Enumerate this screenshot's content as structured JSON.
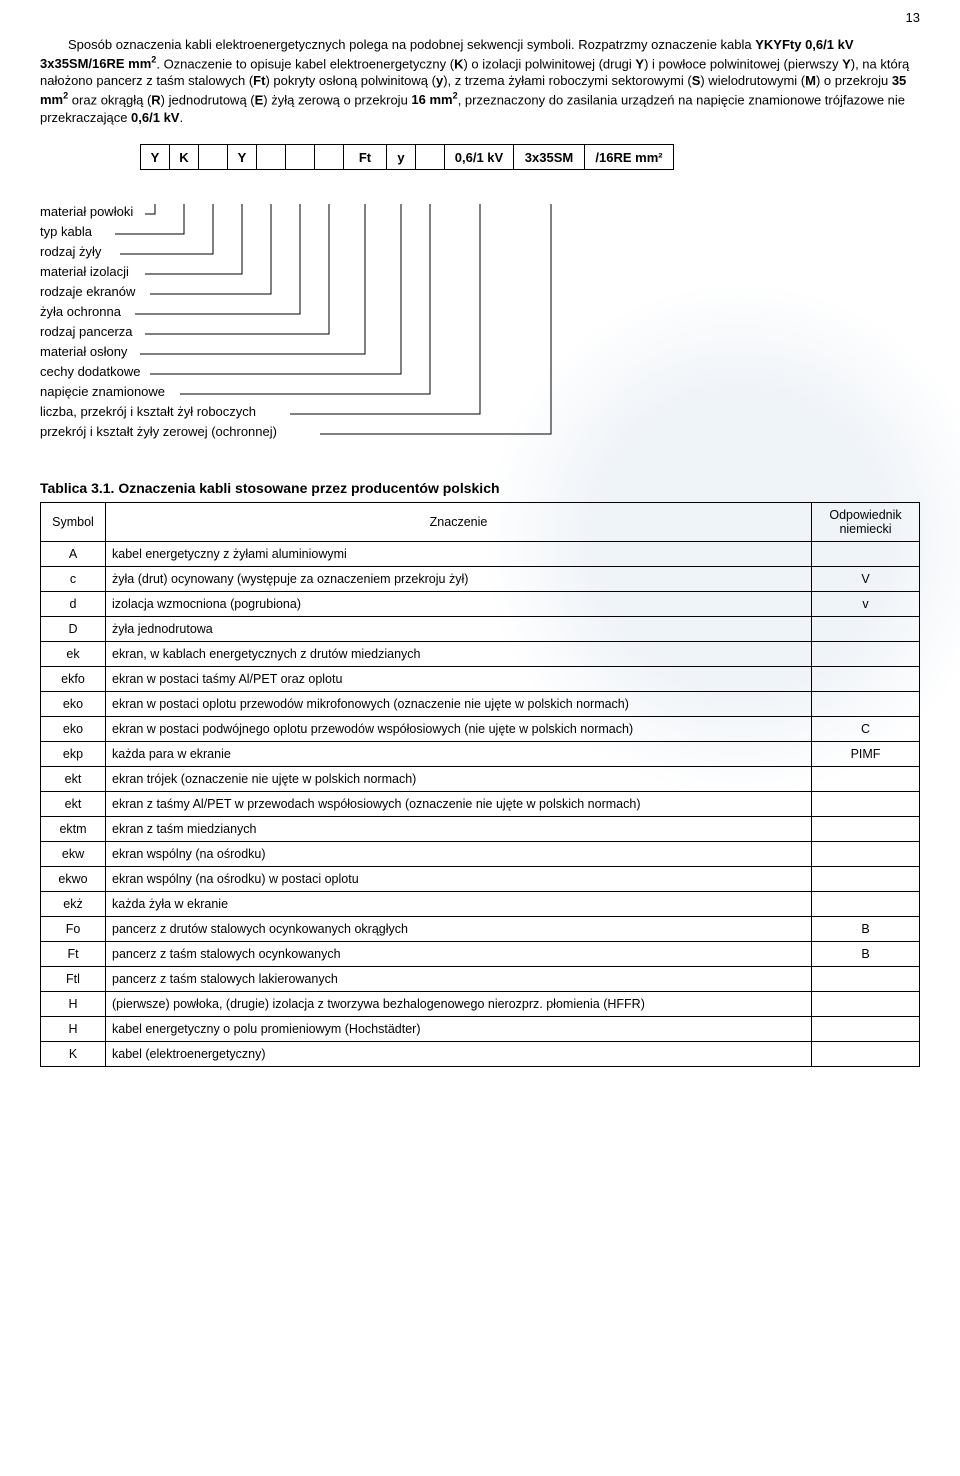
{
  "page_number": "13",
  "intro": {
    "p1_a": "Sposób oznaczenia kabli elektroenergetycznych polega na podobnej sekwencji symboli. Rozpatrzmy oznaczenie kabla ",
    "p1_b": "YKYFty 0,6/1 kV 3x35SM/16RE mm",
    "p1_c": ". Oznaczenie to opisuje kabel elektroenergetyczny (",
    "p1_d": ") o izolacji polwinitowej (drugi ",
    "p1_e": ") i powłoce polwinitowej (pierwszy ",
    "p1_f": "), na którą nałożono pancerz z taśm stalowych (",
    "p1_g": ") pokryty osłoną polwinitową (",
    "p1_h": "), z trzema żyłami roboczymi sektorowymi (",
    "p1_i": ") wielodrutowymi (",
    "p1_j": ") o przekroju ",
    "p1_k": " oraz okrągłą (",
    "p1_l": ") jednodrutową (",
    "p1_m": ") żyłą zerową o przekroju ",
    "p1_n": ", przeznaczony do zasilania urządzeń na napięcie znamionowe trójfazowe nie przekraczające ",
    "p1_o": ".",
    "k_K": "K",
    "k_Y": "Y",
    "k_Ft": "Ft",
    "k_y": "y",
    "k_S": "S",
    "k_M": "M",
    "k_R": "R",
    "k_E": "E",
    "k_35": "35 mm",
    "k_16": "16 mm",
    "k_061": "0,6/1 kV",
    "sup2": "2"
  },
  "diagram": {
    "cells": [
      "Y",
      "K",
      "",
      "Y",
      "",
      "",
      "",
      "Ft",
      "y",
      "",
      "0,6/1 kV",
      "3x35SM",
      "/16RE mm²"
    ],
    "labels": [
      "materiał powłoki",
      "typ kabla",
      "rodzaj żyły",
      "materiał izolacji",
      "rodzaje ekranów",
      "żyła ochronna",
      "rodzaj pancerza",
      "materiał osłony",
      "cechy dodatkowe",
      "napięcie znamionowe",
      "liczba, przekrój i kształt żył roboczych",
      "przekrój i kształt żyły zerowej (ochronnej)"
    ]
  },
  "table": {
    "title": "Tablica 3.1. Oznaczenia kabli stosowane przez producentów polskich",
    "head_symbol": "Symbol",
    "head_meaning": "Znaczenie",
    "head_equiv": "Odpowiednik niemiecki",
    "rows": [
      {
        "sym": "A",
        "mean": "kabel energetyczny z żyłami aluminiowymi",
        "eq": ""
      },
      {
        "sym": "c",
        "mean": "żyła (drut) ocynowany (występuje za oznaczeniem przekroju żył)",
        "eq": "V"
      },
      {
        "sym": "d",
        "mean": "izolacja wzmocniona (pogrubiona)",
        "eq": "v"
      },
      {
        "sym": "D",
        "mean": "żyła jednodrutowa",
        "eq": ""
      },
      {
        "sym": "ek",
        "mean": "ekran, w kablach energetycznych z drutów miedzianych",
        "eq": ""
      },
      {
        "sym": "ekfo",
        "mean": "ekran w postaci taśmy Al/PET oraz oplotu",
        "eq": ""
      },
      {
        "sym": "eko",
        "mean": "ekran w postaci oplotu przewodów mikrofonowych (oznaczenie nie ujęte w polskich normach)",
        "eq": ""
      },
      {
        "sym": "eko",
        "mean": "ekran w postaci podwójnego oplotu przewodów współosiowych (nie ujęte w polskich normach)",
        "eq": "C"
      },
      {
        "sym": "ekp",
        "mean": "każda para w ekranie",
        "eq": "PIMF"
      },
      {
        "sym": "ekt",
        "mean": "ekran trójek (oznaczenie nie ujęte w polskich normach)",
        "eq": ""
      },
      {
        "sym": "ekt",
        "mean": "ekran z taśmy Al/PET w przewodach współosiowych (oznaczenie nie ujęte w polskich normach)",
        "eq": ""
      },
      {
        "sym": "ektm",
        "mean": "ekran z taśm miedzianych",
        "eq": ""
      },
      {
        "sym": "ekw",
        "mean": "ekran wspólny (na ośrodku)",
        "eq": ""
      },
      {
        "sym": "ekwo",
        "mean": "ekran wspólny (na ośrodku) w postaci oplotu",
        "eq": ""
      },
      {
        "sym": "ekż",
        "mean": "każda żyła w ekranie",
        "eq": ""
      },
      {
        "sym": "Fo",
        "mean": "pancerz z drutów stalowych ocynkowanych okrągłych",
        "eq": "B"
      },
      {
        "sym": "Ft",
        "mean": "pancerz z taśm stalowych ocynkowanych",
        "eq": "B"
      },
      {
        "sym": "Ftl",
        "mean": "pancerz z taśm stalowych lakierowanych",
        "eq": ""
      },
      {
        "sym": "H",
        "mean": "(pierwsze) powłoka, (drugie) izolacja z tworzywa bezhalogenowego nierozprz. płomienia (HFFR)",
        "eq": ""
      },
      {
        "sym": "H",
        "mean": "kabel energetyczny o polu promieniowym (Hochstädter)",
        "eq": ""
      },
      {
        "sym": "K",
        "mean": "kabel (elektroenergetyczny)",
        "eq": ""
      }
    ]
  },
  "style": {
    "colors": {
      "text": "#000000",
      "border": "#000000",
      "background": "#ffffff",
      "watermark": "#3a6ea5"
    },
    "fonts": {
      "family": "Arial",
      "body_size_pt": 10,
      "title_size_pt": 11
    }
  }
}
